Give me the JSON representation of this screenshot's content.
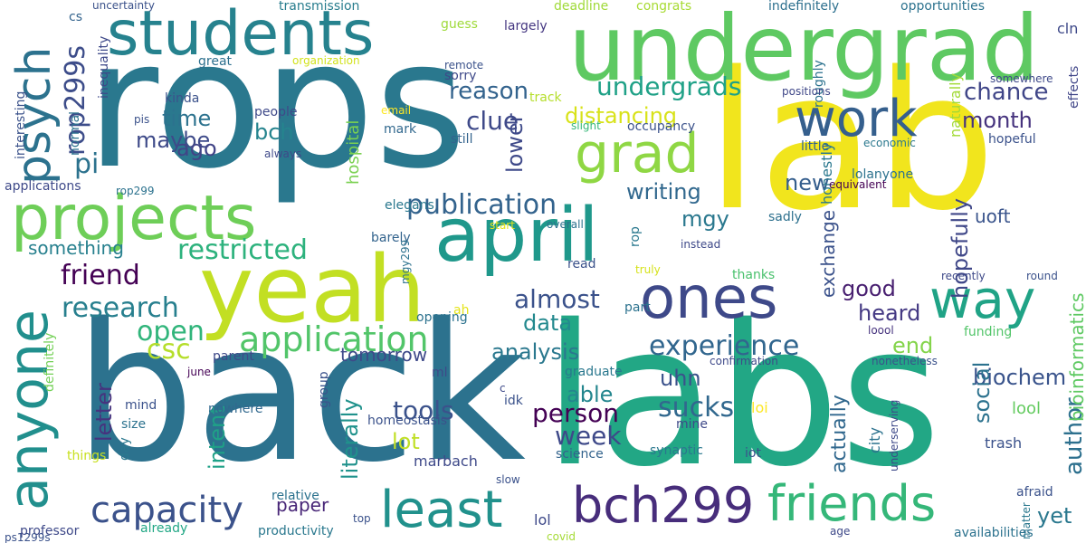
{
  "words": [
    {
      "text": "rops",
      "color": "#2a788e"
    },
    {
      "text": "lab",
      "color": "#f1e51d"
    },
    {
      "text": "back",
      "color": "#2c728e"
    },
    {
      "text": "labs",
      "color": "#22a785"
    },
    {
      "text": "undergrad",
      "color": "#5ec962"
    },
    {
      "text": "students",
      "color": "#26828e"
    },
    {
      "text": "yeah",
      "color": "#c2df23"
    },
    {
      "text": "projects",
      "color": "#6ece58"
    },
    {
      "text": "april",
      "color": "#1f988b"
    },
    {
      "text": "grad",
      "color": "#8fd744"
    },
    {
      "text": "ones",
      "color": "#3e4989"
    },
    {
      "text": "way",
      "color": "#20a386"
    },
    {
      "text": "work",
      "color": "#355f8d"
    },
    {
      "text": "anyone",
      "color": "#218f8d"
    },
    {
      "text": "psych",
      "color": "#2c728e"
    },
    {
      "text": "bch299",
      "color": "#472d7b"
    },
    {
      "text": "least",
      "color": "#21918c"
    },
    {
      "text": "friends",
      "color": "#35b779"
    },
    {
      "text": "capacity",
      "color": "#3b528b"
    },
    {
      "text": "application",
      "color": "#52c569"
    },
    {
      "text": "restricted",
      "color": "#2db27d"
    },
    {
      "text": "research",
      "color": "#277f8e"
    },
    {
      "text": "publication",
      "color": "#33638d"
    },
    {
      "text": "experience",
      "color": "#31668e"
    },
    {
      "text": "undergrads",
      "color": "#1fa187"
    },
    {
      "text": "distancing",
      "color": "#d8e219"
    },
    {
      "text": "writing",
      "color": "#31688e"
    },
    {
      "text": "rop299s",
      "color": "#3d4d8a"
    },
    {
      "text": "almost",
      "color": "#3b528b"
    },
    {
      "text": "chance",
      "color": "#404688"
    },
    {
      "text": "reason",
      "color": "#33638d"
    },
    {
      "text": "clue",
      "color": "#3e4989"
    },
    {
      "text": "time",
      "color": "#2c728e"
    },
    {
      "text": "maybe",
      "color": "#3e4a89"
    },
    {
      "text": "bch",
      "color": "#25848e"
    },
    {
      "text": "pi",
      "color": "#2c728e"
    },
    {
      "text": "ago",
      "color": "#414487"
    },
    {
      "text": "friend",
      "color": "#440154"
    },
    {
      "text": "open",
      "color": "#31b57b"
    },
    {
      "text": "csc",
      "color": "#b5de2b"
    },
    {
      "text": "data",
      "color": "#23898e"
    },
    {
      "text": "analysis",
      "color": "#2a788e"
    },
    {
      "text": "tools",
      "color": "#3b528b"
    },
    {
      "text": "person",
      "color": "#440154"
    },
    {
      "text": "sucks",
      "color": "#31688e"
    },
    {
      "text": "week",
      "color": "#3e4989"
    },
    {
      "text": "lot",
      "color": "#c0df25"
    },
    {
      "text": "able",
      "color": "#24868e"
    },
    {
      "text": "uhn",
      "color": "#3b528b"
    },
    {
      "text": "heard",
      "color": "#443983"
    },
    {
      "text": "good",
      "color": "#481f70"
    },
    {
      "text": "end",
      "color": "#84d44b"
    },
    {
      "text": "biochem",
      "color": "#3a548c"
    },
    {
      "text": "social",
      "color": "#2c728e"
    },
    {
      "text": "author",
      "color": "#2d708e"
    },
    {
      "text": "bioinformatics",
      "color": "#5ec962"
    },
    {
      "text": "month",
      "color": "#46337e"
    },
    {
      "text": "hopefully",
      "color": "#3f4788"
    },
    {
      "text": "new",
      "color": "#355e8d"
    },
    {
      "text": "mgy",
      "color": "#2a788e"
    },
    {
      "text": "uoft",
      "color": "#3a548c"
    },
    {
      "text": "exchange",
      "color": "#3b528b"
    },
    {
      "text": "actually",
      "color": "#31688e"
    },
    {
      "text": "yet",
      "color": "#2a788e"
    },
    {
      "text": "paper",
      "color": "#482677"
    },
    {
      "text": "tomorrow",
      "color": "#3e4989"
    },
    {
      "text": "literally",
      "color": "#20928c"
    },
    {
      "text": "intent",
      "color": "#1fa187"
    },
    {
      "text": "letter",
      "color": "#46337e"
    },
    {
      "text": "something",
      "color": "#27808e"
    },
    {
      "text": "lower",
      "color": "#3e4989"
    },
    {
      "text": "cs",
      "color": "#33638d"
    },
    {
      "text": "transmission",
      "color": "#287d8e"
    },
    {
      "text": "deadline",
      "color": "#a0da39"
    },
    {
      "text": "congrats",
      "color": "#a8db34"
    },
    {
      "text": "indefinitely",
      "color": "#2d708e"
    },
    {
      "text": "opportunities",
      "color": "#2c728e"
    },
    {
      "text": "cln",
      "color": "#3e4989"
    },
    {
      "text": "guess",
      "color": "#9fda3a"
    },
    {
      "text": "largely",
      "color": "#453781"
    },
    {
      "text": "remote",
      "color": "#3b528b"
    },
    {
      "text": "sorry",
      "color": "#3e4989"
    },
    {
      "text": "organization",
      "color": "#d2e21b"
    },
    {
      "text": "great",
      "color": "#2d708e"
    },
    {
      "text": "kinda",
      "color": "#3b528b"
    },
    {
      "text": "people",
      "color": "#3e4989"
    },
    {
      "text": "hospital",
      "color": "#7ad151"
    },
    {
      "text": "email",
      "color": "#fde725"
    },
    {
      "text": "mark",
      "color": "#31688e"
    },
    {
      "text": "still",
      "color": "#33638d"
    },
    {
      "text": "track",
      "color": "#b5de2b"
    },
    {
      "text": "slight",
      "color": "#37b878"
    },
    {
      "text": "occupancy",
      "color": "#3b528b"
    },
    {
      "text": "roughly",
      "color": "#2c728e"
    },
    {
      "text": "positions",
      "color": "#3f4788"
    },
    {
      "text": "somewhere",
      "color": "#3e4989"
    },
    {
      "text": "effects",
      "color": "#404688"
    },
    {
      "text": "economic",
      "color": "#2a788e"
    },
    {
      "text": "hopeful",
      "color": "#3b528b"
    },
    {
      "text": "naturally",
      "color": "#a2da37"
    },
    {
      "text": "little",
      "color": "#33638d"
    },
    {
      "text": "lolanyone",
      "color": "#2c728e"
    },
    {
      "text": "honestly",
      "color": "#2a788e"
    },
    {
      "text": "equivalent",
      "color": "#440154"
    },
    {
      "text": "sadly",
      "color": "#2d708e"
    },
    {
      "text": "instead",
      "color": "#3e4989"
    },
    {
      "text": "truly",
      "color": "#d5e21a"
    },
    {
      "text": "thanks",
      "color": "#4ac16d"
    },
    {
      "text": "recently",
      "color": "#3e4989"
    },
    {
      "text": "round",
      "color": "#3b528b"
    },
    {
      "text": "funding",
      "color": "#52c569"
    },
    {
      "text": "loool",
      "color": "#46337e"
    },
    {
      "text": "confirmation",
      "color": "#3e4989"
    },
    {
      "text": "nonetheless",
      "color": "#3b528b"
    },
    {
      "text": "lool",
      "color": "#63cb5f"
    },
    {
      "text": "city",
      "color": "#2c728e"
    },
    {
      "text": "underserving",
      "color": "#3e4989"
    },
    {
      "text": "trash",
      "color": "#3b528b"
    },
    {
      "text": "afraid",
      "color": "#3b528b"
    },
    {
      "text": "matter",
      "color": "#2a788e"
    },
    {
      "text": "availabilities",
      "color": "#2c728e"
    },
    {
      "text": "age",
      "color": "#3e4989"
    },
    {
      "text": "iot",
      "color": "#3b528b"
    },
    {
      "text": "synaptic",
      "color": "#2a788e"
    },
    {
      "text": "mine",
      "color": "#3e4989"
    },
    {
      "text": "loi",
      "color": "#fde725"
    },
    {
      "text": "science",
      "color": "#33638d"
    },
    {
      "text": "slow",
      "color": "#3b528b"
    },
    {
      "text": "graduate",
      "color": "#2a788e"
    },
    {
      "text": "ml",
      "color": "#3e4989"
    },
    {
      "text": "idk",
      "color": "#3b528b"
    },
    {
      "text": "c",
      "color": "#3e4989"
    },
    {
      "text": "part",
      "color": "#2c728e"
    },
    {
      "text": "read",
      "color": "#3b528b"
    },
    {
      "text": "rop",
      "color": "#2a788e"
    },
    {
      "text": "barely",
      "color": "#33638d"
    },
    {
      "text": "overall",
      "color": "#2c728e"
    },
    {
      "text": "start",
      "color": "#e5e419"
    },
    {
      "text": "elegans",
      "color": "#2a788e"
    },
    {
      "text": "homeostasis",
      "color": "#3b528b"
    },
    {
      "text": "marbach",
      "color": "#3e4989"
    },
    {
      "text": "opening",
      "color": "#2c728e"
    },
    {
      "text": "ah",
      "color": "#e5e419"
    },
    {
      "text": "mgy299",
      "color": "#2c728e"
    },
    {
      "text": "group",
      "color": "#3b528b"
    },
    {
      "text": "lol",
      "color": "#3e4989"
    },
    {
      "text": "top",
      "color": "#3b528b"
    },
    {
      "text": "covid",
      "color": "#a5db36"
    },
    {
      "text": "relative",
      "color": "#2c728e"
    },
    {
      "text": "productivity",
      "color": "#2a788e"
    },
    {
      "text": "already",
      "color": "#22a785"
    },
    {
      "text": "professor",
      "color": "#3e4989"
    },
    {
      "text": "nowhere",
      "color": "#31688e"
    },
    {
      "text": "size",
      "color": "#2c728e"
    },
    {
      "text": "day",
      "color": "#2a788e"
    },
    {
      "text": "mind",
      "color": "#3b528b"
    },
    {
      "text": "parent",
      "color": "#3e4989"
    },
    {
      "text": "june",
      "color": "#440154"
    },
    {
      "text": "things",
      "color": "#c8e020"
    },
    {
      "text": "ps1299s",
      "color": "#3b528b"
    },
    {
      "text": "definitely",
      "color": "#73d056"
    },
    {
      "text": "applications",
      "color": "#3e4989"
    },
    {
      "text": "rop299",
      "color": "#2c728e"
    },
    {
      "text": "interesting",
      "color": "#3b528b"
    },
    {
      "text": "inequality",
      "color": "#3e4989"
    },
    {
      "text": "normal",
      "color": "#2c728e"
    },
    {
      "text": "uncertainty",
      "color": "#3b528b"
    },
    {
      "text": "always",
      "color": "#3e4989"
    },
    {
      "text": "pis",
      "color": "#3b528b"
    }
  ]
}
